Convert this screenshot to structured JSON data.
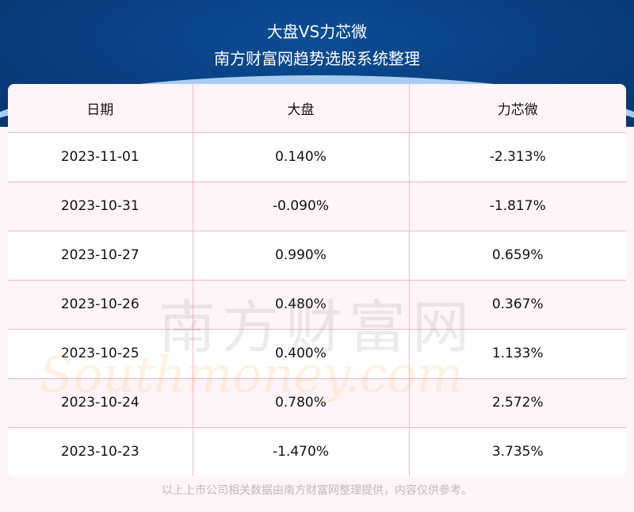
{
  "header": {
    "title": "大盘VS力芯微",
    "subtitle": "南方财富网趋势选股系统整理"
  },
  "table": {
    "columns": [
      "日期",
      "大盘",
      "力芯微"
    ],
    "rows": [
      [
        "2023-11-01",
        "0.140%",
        "-2.313%"
      ],
      [
        "2023-10-31",
        "-0.090%",
        "-1.817%"
      ],
      [
        "2023-10-27",
        "0.990%",
        "0.659%"
      ],
      [
        "2023-10-26",
        "0.480%",
        "0.367%"
      ],
      [
        "2023-10-25",
        "0.400%",
        "1.133%"
      ],
      [
        "2023-10-24",
        "0.780%",
        "2.572%"
      ],
      [
        "2023-10-23",
        "-1.470%",
        "3.735%"
      ]
    ]
  },
  "watermark": {
    "cn": "南方财富网",
    "en": "Southmoney.com"
  },
  "footer": "以上上市公司相关数据由南方财富网整理提供，内容仅供参考。"
}
